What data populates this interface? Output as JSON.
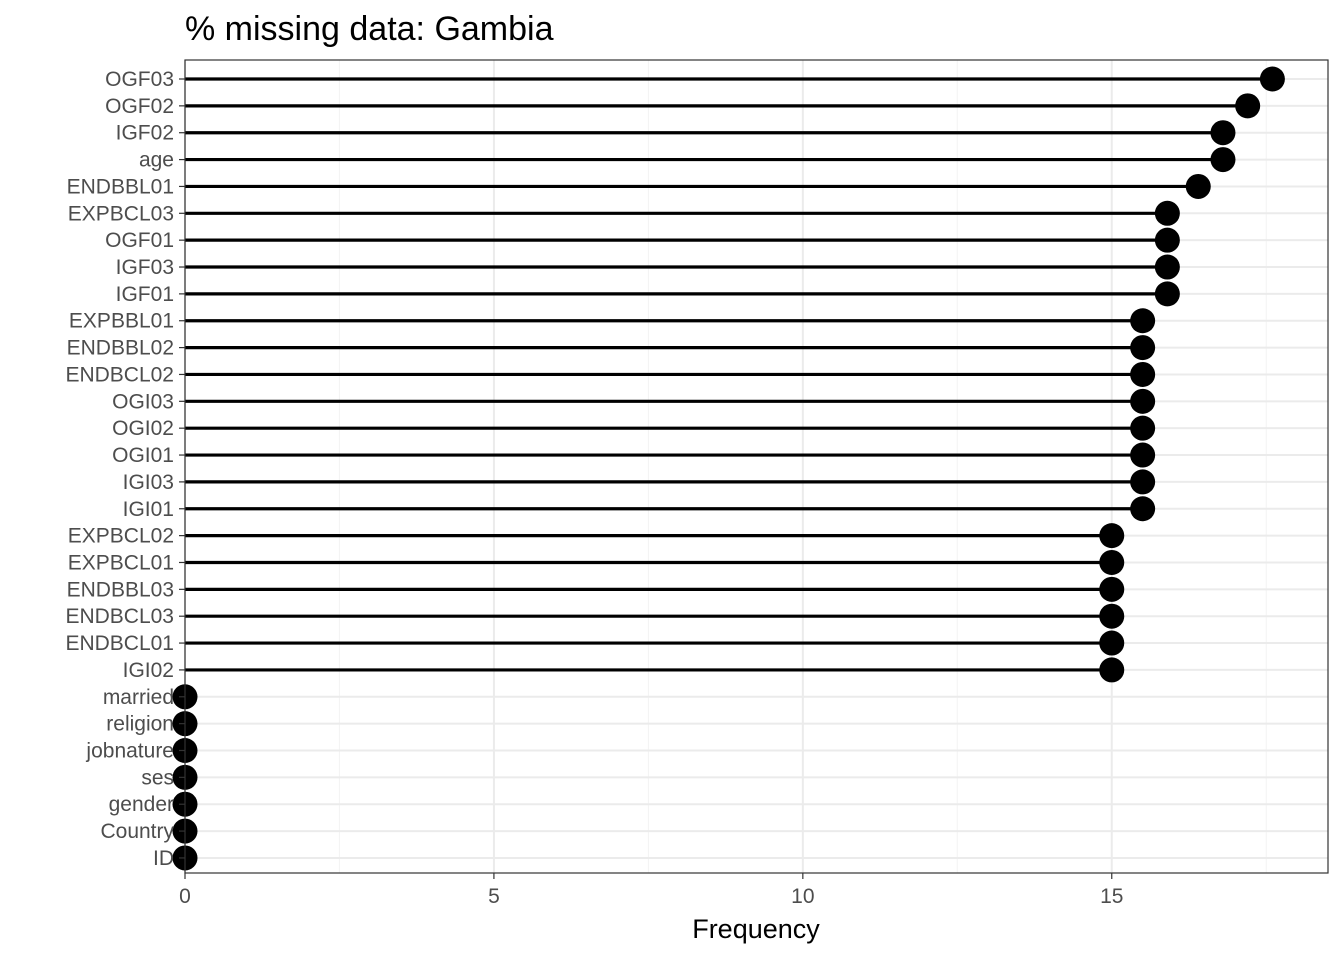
{
  "chart_data": {
    "type": "lollipop",
    "title": "% missing data: Gambia",
    "xlabel": "Frequency",
    "ylabel": "",
    "xlim": [
      0,
      18.5
    ],
    "xticks": [
      0,
      5,
      10,
      15
    ],
    "grid": true,
    "categories": [
      "OGF03",
      "OGF02",
      "IGF02",
      "age",
      "ENDBBL01",
      "EXPBCL03",
      "OGF01",
      "IGF03",
      "IGF01",
      "EXPBBL01",
      "ENDBBL02",
      "ENDBCL02",
      "OGI03",
      "OGI02",
      "OGI01",
      "IGI03",
      "IGI01",
      "EXPBCL02",
      "EXPBCL01",
      "ENDBBL03",
      "ENDBCL03",
      "ENDBCL01",
      "IGI02",
      "married",
      "religion",
      "jobnature",
      "ses",
      "gender",
      "Country",
      "ID"
    ],
    "values": [
      17.6,
      17.2,
      16.8,
      16.8,
      16.4,
      15.9,
      15.9,
      15.9,
      15.9,
      15.5,
      15.5,
      15.5,
      15.5,
      15.5,
      15.5,
      15.5,
      15.5,
      15.0,
      15.0,
      15.0,
      15.0,
      15.0,
      15.0,
      0,
      0,
      0,
      0,
      0,
      0,
      0
    ]
  }
}
